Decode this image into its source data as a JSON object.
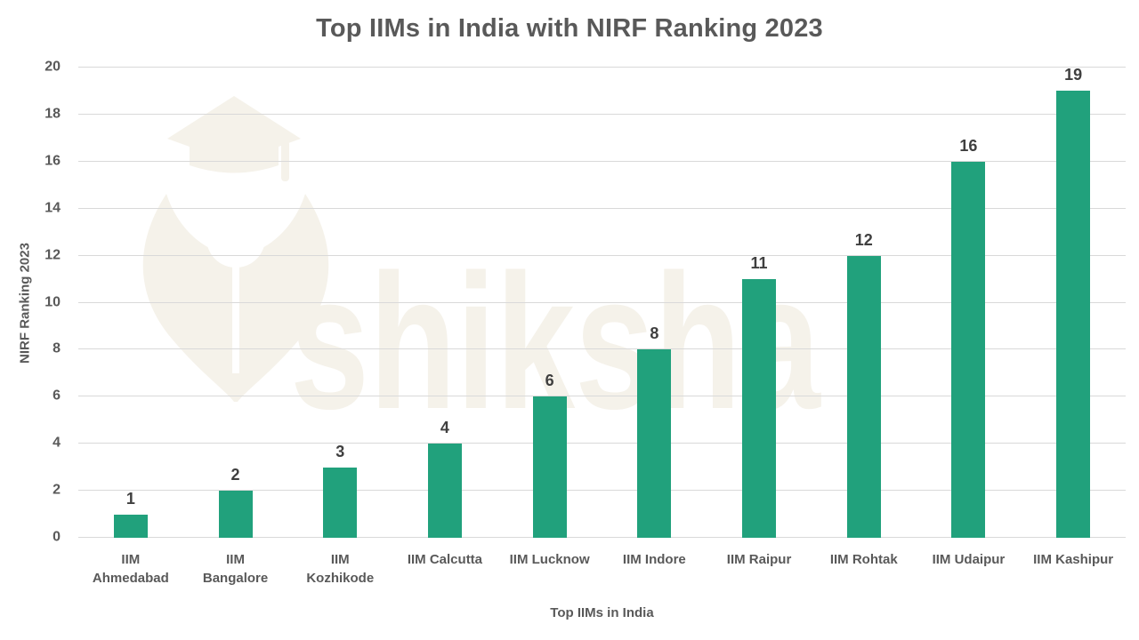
{
  "chart_data": {
    "type": "bar",
    "title": "Top IIMs in India with NIRF Ranking 2023",
    "xlabel": "Top IIMs in India",
    "ylabel": "NIRF Ranking 2023",
    "categories": [
      "IIM\nAhmedabad",
      "IIM\nBangalore",
      "IIM\nKozhikode",
      "IIM Calcutta",
      "IIM Lucknow",
      "IIM Indore",
      "IIM Raipur",
      "IIM Rohtak",
      "IIM Udaipur",
      "IIM Kashipur"
    ],
    "values": [
      1,
      2,
      3,
      4,
      6,
      8,
      11,
      12,
      16,
      19
    ],
    "data_labels": [
      1,
      2,
      3,
      4,
      6,
      8,
      11,
      12,
      16,
      19
    ],
    "ylim": [
      0,
      20
    ],
    "ytick_step": 2,
    "grid": true,
    "legend": false,
    "bar_color": "#21a17c"
  },
  "watermark": {
    "text": "shiksha",
    "color": "#f5f2ea"
  },
  "colors": {
    "background": "#ffffff",
    "title": "#595959",
    "axis_text": "#595959",
    "data_label": "#3f3f3f",
    "gridline": "#d9d9d9"
  }
}
